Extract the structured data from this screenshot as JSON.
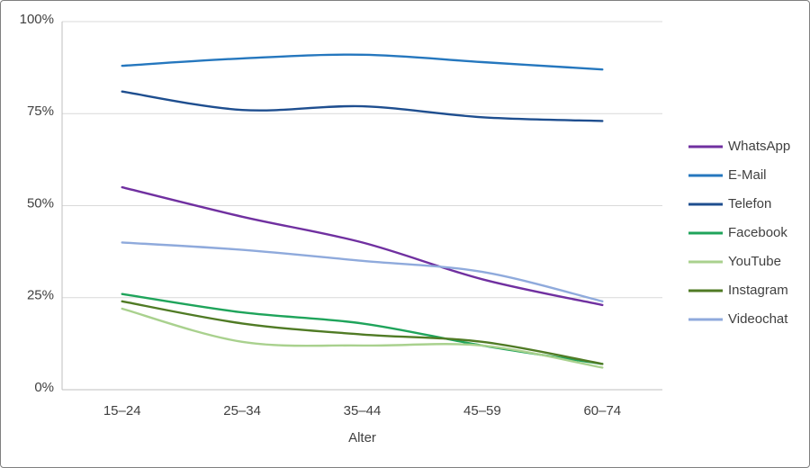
{
  "chart_data": {
    "type": "line",
    "title": "",
    "xlabel": "Alter",
    "ylabel": "",
    "categories": [
      "15–24",
      "25–34",
      "35–44",
      "45–59",
      "60–74"
    ],
    "y_ticks": [
      "0%",
      "25%",
      "50%",
      "75%",
      "100%"
    ],
    "ylim": [
      0,
      100
    ],
    "grid": true,
    "smooth": true,
    "legend_position": "right",
    "series": [
      {
        "name": "WhatsApp",
        "color": "#7030A0",
        "values": [
          55,
          47,
          40,
          30,
          23
        ]
      },
      {
        "name": "E-Mail",
        "color": "#2577BE",
        "values": [
          88,
          90,
          91,
          89,
          87
        ]
      },
      {
        "name": "Telefon",
        "color": "#1E4E8F",
        "values": [
          81,
          76,
          77,
          74,
          73
        ]
      },
      {
        "name": "Facebook",
        "color": "#1FA45B",
        "values": [
          26,
          21,
          18,
          12,
          7
        ]
      },
      {
        "name": "YouTube",
        "color": "#A9D18E",
        "values": [
          22,
          13,
          12,
          12,
          6
        ]
      },
      {
        "name": "Instagram",
        "color": "#507B25",
        "values": [
          24,
          18,
          15,
          13,
          7
        ]
      },
      {
        "name": "Videochat",
        "color": "#8FAADC",
        "values": [
          40,
          38,
          35,
          32,
          24
        ]
      }
    ],
    "style": {
      "gridline_color": "#D9D9D9",
      "axis_line_color": "#BFBFBF",
      "label_color": "#404040"
    }
  }
}
